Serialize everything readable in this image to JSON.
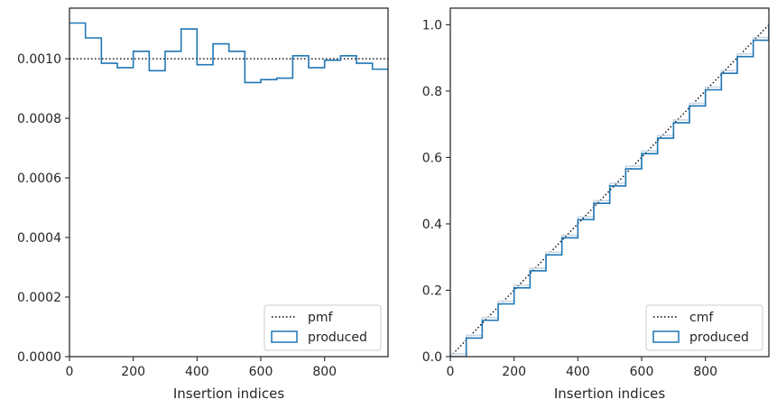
{
  "chart_data": [
    {
      "type": "line",
      "xlabel": "Insertion indices",
      "ylabel": "",
      "xlim": [
        0,
        999
      ],
      "ylim": [
        0,
        0.00117
      ],
      "xticks": [
        "0",
        "200",
        "400",
        "600",
        "800"
      ],
      "yticks": [
        "0.0000",
        "0.0002",
        "0.0004",
        "0.0006",
        "0.0008",
        "0.0010"
      ],
      "grid": false,
      "legend_position": "bottom-right",
      "series": [
        {
          "name": "pmf",
          "style": "dotted",
          "color": "#000000",
          "x": [
            0,
            999
          ],
          "y": [
            0.001,
            0.001
          ]
        },
        {
          "name": "produced",
          "style": "step-histogram",
          "color": "#1f77b4",
          "bin_edges": [
            0,
            50,
            100,
            150,
            200,
            250,
            300,
            350,
            400,
            450,
            500,
            550,
            600,
            650,
            700,
            750,
            800,
            850,
            900,
            950,
            999
          ],
          "values": [
            0.00112,
            0.00107,
            0.000985,
            0.00097,
            0.001025,
            0.00096,
            0.001025,
            0.0011,
            0.00098,
            0.00105,
            0.001025,
            0.00092,
            0.00093,
            0.000935,
            0.00101,
            0.00097,
            0.000995,
            0.00101,
            0.000985,
            0.000965
          ]
        }
      ]
    },
    {
      "type": "line",
      "xlabel": "Insertion indices",
      "ylabel": "",
      "xlim": [
        0,
        999
      ],
      "ylim": [
        0,
        1.05
      ],
      "xticks": [
        "0",
        "200",
        "400",
        "600",
        "800"
      ],
      "yticks": [
        "0.0",
        "0.2",
        "0.4",
        "0.6",
        "0.8",
        "1.0"
      ],
      "grid": false,
      "legend_position": "bottom-right",
      "series": [
        {
          "name": "cmf",
          "style": "dotted",
          "color": "#000000",
          "x": [
            0,
            999
          ],
          "y": [
            0,
            1.0
          ]
        },
        {
          "name": "produced",
          "style": "step",
          "color": "#1f77b4",
          "x": [
            0,
            50,
            100,
            150,
            200,
            250,
            300,
            350,
            400,
            450,
            500,
            550,
            600,
            650,
            700,
            750,
            800,
            850,
            900,
            950,
            999
          ],
          "y": [
            0,
            0.056,
            0.1095,
            0.1588,
            0.2073,
            0.2585,
            0.3065,
            0.3578,
            0.4128,
            0.4618,
            0.5143,
            0.5655,
            0.6115,
            0.658,
            0.7048,
            0.7553,
            0.8038,
            0.8535,
            0.904,
            0.9533,
            1.0
          ]
        }
      ]
    }
  ]
}
